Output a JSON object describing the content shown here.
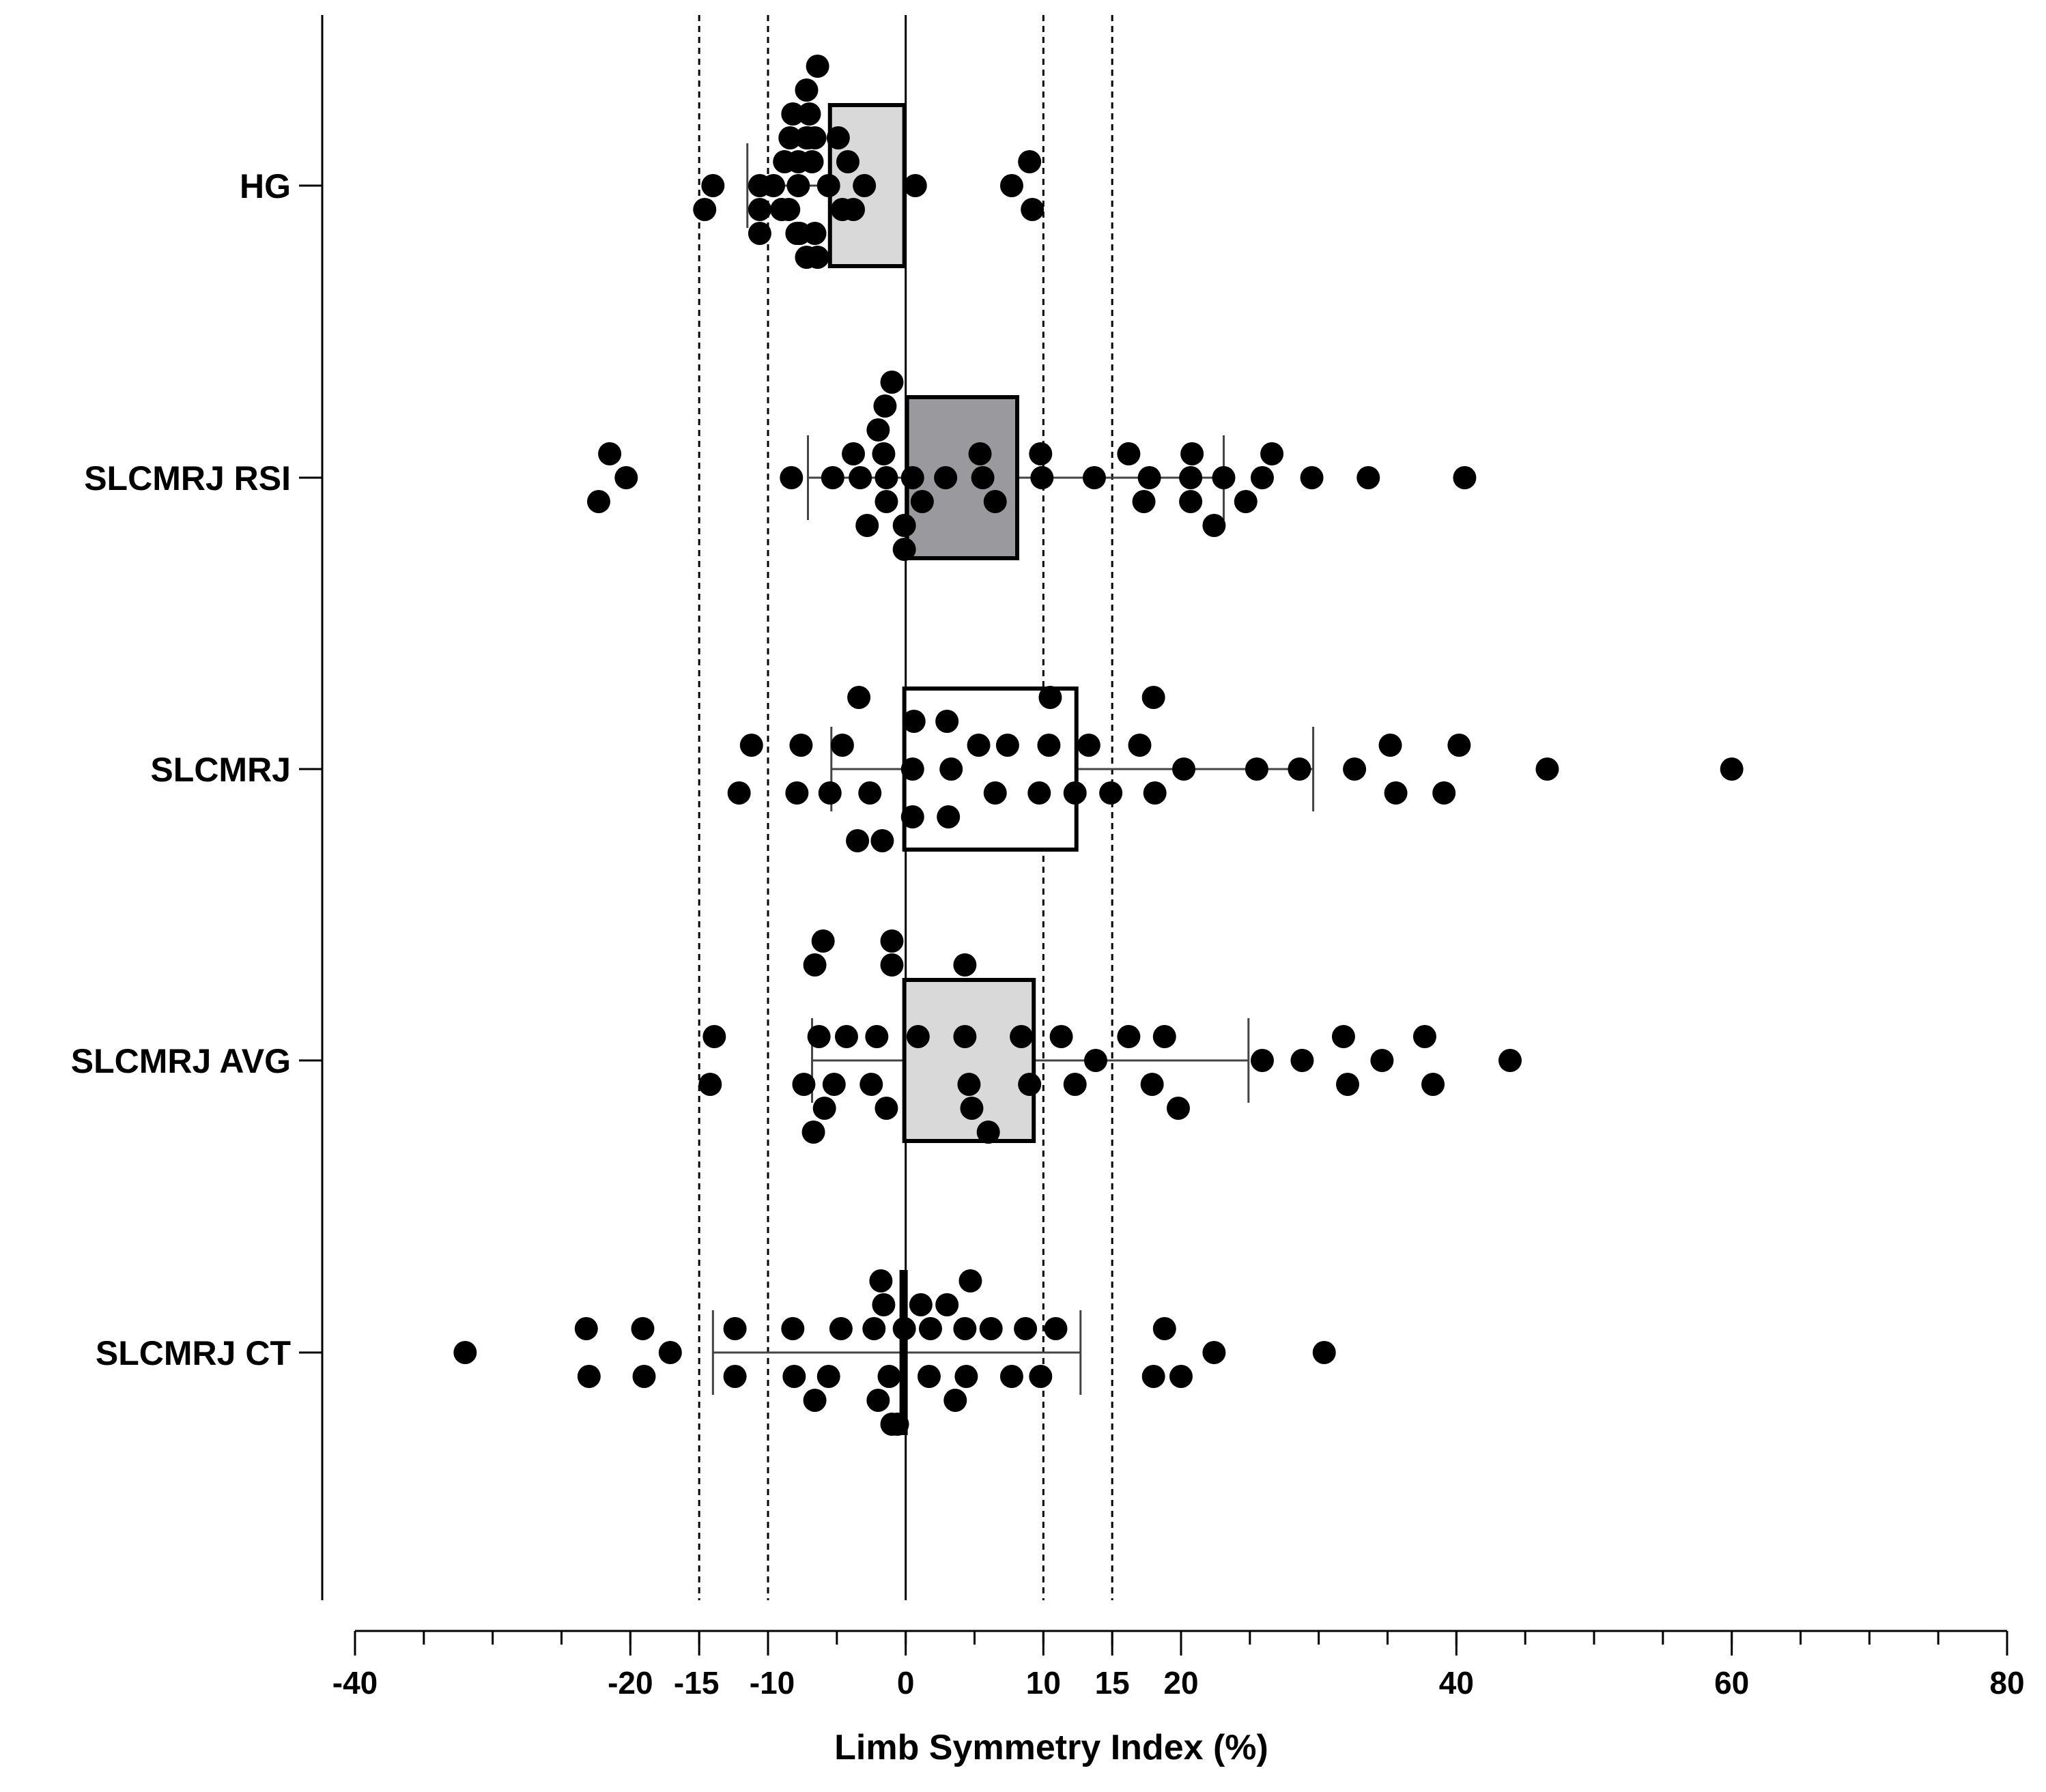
{
  "chart_data": {
    "type": "box-scatter",
    "orientation": "horizontal",
    "xlabel": "Limb Symmetry Index (%)",
    "xlim": [
      -40,
      80
    ],
    "xticks": [
      -40,
      -20,
      -15,
      -10,
      0,
      10,
      15,
      20,
      40,
      60,
      80
    ],
    "reference_lines": [
      -15,
      -10,
      10,
      15
    ],
    "zero_line": 0,
    "categories": [
      "HG",
      "SLCMRJ RSI",
      "SLCMRJ",
      "SLCMRJ AVG",
      "SLCMRJ CT"
    ],
    "groups": [
      {
        "name": "HG",
        "box": {
          "q1": -5.5,
          "q3": -0.1,
          "min": -11.5,
          "max": -0.1
        },
        "fill": "#d9d9d9",
        "points": [
          [
            -6.4,
            -3
          ],
          [
            -7.2,
            -2
          ],
          [
            -7.0,
            -1
          ],
          [
            -8.2,
            -1
          ],
          [
            -8.4,
            0
          ],
          [
            -7.2,
            0
          ],
          [
            -7.8,
            1
          ],
          [
            -8.8,
            1
          ],
          [
            -7.8,
            2
          ],
          [
            -9.6,
            2
          ],
          [
            -6.8,
            1
          ],
          [
            -7.1,
            0
          ],
          [
            -4.6,
            3
          ],
          [
            -3.8,
            3
          ],
          [
            -5.6,
            2
          ],
          [
            -3.0,
            2
          ],
          [
            -4.2,
            1
          ],
          [
            -4.9,
            0
          ],
          [
            -6.6,
            0
          ],
          [
            -8.5,
            3
          ],
          [
            -7.9,
            4
          ],
          [
            -6.4,
            5
          ],
          [
            -7.7,
            4
          ],
          [
            -6.6,
            4
          ],
          [
            -7.2,
            5
          ],
          [
            -9.0,
            3
          ],
          [
            -10.6,
            2
          ],
          [
            -10.6,
            3
          ],
          [
            -10.6,
            4
          ],
          [
            -14.0,
            2
          ],
          [
            -14.6,
            3
          ],
          [
            0.7,
            2
          ],
          [
            7.7,
            2
          ],
          [
            9.0,
            1
          ],
          [
            9.2,
            3
          ]
        ]
      },
      {
        "name": "SLCMRJ RSI",
        "box": {
          "q1": 0.1,
          "q3": 8.1,
          "min": -7.1,
          "max": 23.1
        },
        "fill": "#9a9a9e",
        "points": [
          [
            -21.5,
            1
          ],
          [
            -20.3,
            2
          ],
          [
            -22.3,
            3
          ],
          [
            -8.3,
            2
          ],
          [
            -3.8,
            1
          ],
          [
            -2.0,
            0
          ],
          [
            -1.5,
            -1
          ],
          [
            -1.0,
            -2
          ],
          [
            -1.6,
            1
          ],
          [
            -3.3,
            2
          ],
          [
            -5.3,
            2
          ],
          [
            -1.4,
            2
          ],
          [
            -1.4,
            3
          ],
          [
            -0.1,
            4
          ],
          [
            -0.1,
            5
          ],
          [
            -2.8,
            4
          ],
          [
            0.5,
            2
          ],
          [
            1.2,
            3
          ],
          [
            2.9,
            2
          ],
          [
            5.4,
            1
          ],
          [
            5.6,
            2
          ],
          [
            6.5,
            3
          ],
          [
            9.8,
            1
          ],
          [
            9.9,
            2
          ],
          [
            13.7,
            2
          ],
          [
            16.2,
            1
          ],
          [
            17.7,
            2
          ],
          [
            17.3,
            3
          ],
          [
            20.8,
            1
          ],
          [
            20.7,
            2
          ],
          [
            20.7,
            3
          ],
          [
            22.4,
            4
          ],
          [
            23.1,
            2
          ],
          [
            25.9,
            2
          ],
          [
            24.7,
            3
          ],
          [
            26.6,
            1
          ],
          [
            29.5,
            2
          ],
          [
            33.6,
            2
          ],
          [
            40.6,
            2
          ]
        ]
      },
      {
        "name": "SLCMRJ",
        "box": {
          "q1": -0.1,
          "q3": 12.4,
          "min": -5.4,
          "max": 29.6
        },
        "fill": "#ffffff",
        "points": [
          [
            -3.4,
            -1
          ],
          [
            -11.2,
            1
          ],
          [
            -7.6,
            1
          ],
          [
            -4.6,
            1
          ],
          [
            -12.1,
            3
          ],
          [
            -7.9,
            3
          ],
          [
            -5.5,
            3
          ],
          [
            -2.6,
            3
          ],
          [
            0.6,
            0
          ],
          [
            3.0,
            0
          ],
          [
            5.3,
            1
          ],
          [
            7.4,
            1
          ],
          [
            10.4,
            1
          ],
          [
            13.3,
            1
          ],
          [
            17.0,
            1
          ],
          [
            10.5,
            -1
          ],
          [
            18.0,
            -1
          ],
          [
            0.5,
            2
          ],
          [
            3.3,
            2
          ],
          [
            6.5,
            3
          ],
          [
            9.7,
            3
          ],
          [
            12.3,
            3
          ],
          [
            14.9,
            3
          ],
          [
            18.1,
            3
          ],
          [
            0.5,
            4
          ],
          [
            3.1,
            4
          ],
          [
            -3.5,
            5
          ],
          [
            -1.7,
            5
          ],
          [
            20.2,
            2
          ],
          [
            25.5,
            2
          ],
          [
            28.6,
            2
          ],
          [
            32.6,
            2
          ],
          [
            35.2,
            1
          ],
          [
            35.6,
            3
          ],
          [
            40.2,
            1
          ],
          [
            39.1,
            3
          ],
          [
            46.6,
            2
          ],
          [
            60.0,
            2
          ]
        ]
      },
      {
        "name": "SLCMRJ AVG",
        "box": {
          "q1": -0.1,
          "q3": 9.3,
          "min": -6.8,
          "max": 24.9
        },
        "fill": "#d9d9d9",
        "points": [
          [
            -6.0,
            -3
          ],
          [
            -1.0,
            -3
          ],
          [
            -6.6,
            -2
          ],
          [
            -1.0,
            -2
          ],
          [
            4.3,
            -2
          ],
          [
            -13.9,
            1
          ],
          [
            -14.2,
            3
          ],
          [
            -6.3,
            1
          ],
          [
            -4.3,
            1
          ],
          [
            -2.1,
            1
          ],
          [
            0.9,
            1
          ],
          [
            4.3,
            1
          ],
          [
            8.4,
            1
          ],
          [
            11.3,
            1
          ],
          [
            16.2,
            1
          ],
          [
            18.8,
            1
          ],
          [
            -7.4,
            3
          ],
          [
            -5.2,
            3
          ],
          [
            -2.5,
            3
          ],
          [
            4.6,
            3
          ],
          [
            9.0,
            3
          ],
          [
            12.3,
            3
          ],
          [
            17.9,
            3
          ],
          [
            -5.9,
            4
          ],
          [
            -1.4,
            4
          ],
          [
            4.8,
            4
          ],
          [
            19.8,
            4
          ],
          [
            -6.7,
            5
          ],
          [
            6.0,
            5
          ],
          [
            13.8,
            2
          ],
          [
            25.9,
            2
          ],
          [
            28.8,
            2
          ],
          [
            31.8,
            1
          ],
          [
            32.1,
            3
          ],
          [
            34.6,
            2
          ],
          [
            37.7,
            1
          ],
          [
            38.3,
            3
          ],
          [
            43.9,
            2
          ]
        ]
      },
      {
        "name": "SLCMRJ CT",
        "box": {
          "q1": -0.3,
          "q3": -0.1,
          "min": -14.0,
          "max": 12.7
        },
        "fill": "#000000",
        "points": [
          [
            -1.8,
            -1
          ],
          [
            4.7,
            -1
          ],
          [
            -1.6,
            0
          ],
          [
            1.1,
            0
          ],
          [
            3.0,
            0
          ],
          [
            -23.2,
            1
          ],
          [
            -19.1,
            1
          ],
          [
            -12.4,
            1
          ],
          [
            -8.2,
            1
          ],
          [
            -4.7,
            1
          ],
          [
            -2.3,
            1
          ],
          [
            -0.1,
            1
          ],
          [
            1.8,
            1
          ],
          [
            4.3,
            1
          ],
          [
            6.2,
            1
          ],
          [
            8.7,
            1
          ],
          [
            10.9,
            1
          ],
          [
            18.8,
            1
          ],
          [
            -32.0,
            2
          ],
          [
            -17.1,
            2
          ],
          [
            22.4,
            2
          ],
          [
            30.4,
            2
          ],
          [
            -23.0,
            3
          ],
          [
            -19.0,
            3
          ],
          [
            -12.4,
            3
          ],
          [
            -8.1,
            3
          ],
          [
            -5.6,
            3
          ],
          [
            -1.2,
            3
          ],
          [
            1.7,
            3
          ],
          [
            4.4,
            3
          ],
          [
            7.7,
            3
          ],
          [
            9.8,
            3
          ],
          [
            18.0,
            3
          ],
          [
            20.0,
            3
          ],
          [
            -6.6,
            4
          ],
          [
            -2.0,
            4
          ],
          [
            3.6,
            4
          ],
          [
            -1.0,
            5
          ],
          [
            -0.6,
            5
          ]
        ]
      }
    ]
  }
}
